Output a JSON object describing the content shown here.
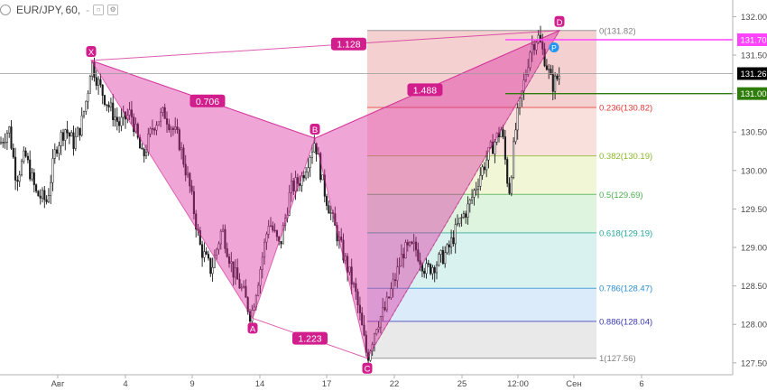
{
  "header": {
    "symbol": "EUR/JPY,",
    "timeframe": "60,",
    "dash": "-",
    "eye_icon": "eye-icon",
    "settings_icon": "gear-icon"
  },
  "chart_data": {
    "type": "candlestick",
    "y_axis": {
      "min": 127.4,
      "max": 132.2,
      "side": "right",
      "ticks": [
        "132.00",
        "131.50",
        "131.00",
        "130.50",
        "130.00",
        "129.50",
        "129.00",
        "128.50",
        "128.00",
        "127.50"
      ]
    },
    "x_axis": {
      "ticks": [
        "Авг",
        "4",
        "9",
        "14",
        "17",
        "22",
        "25",
        "12:00",
        "Сен",
        "6"
      ]
    },
    "price_badges": [
      {
        "label": "131.70",
        "value": 131.7,
        "color": "#ff44ff"
      },
      {
        "label": "131.26",
        "value": 131.26,
        "color": "#000000"
      },
      {
        "label": "131.00",
        "value": 131.0,
        "color": "#2e7d0a"
      }
    ],
    "pattern": {
      "points": [
        {
          "name": "X",
          "value": 131.43
        },
        {
          "name": "A",
          "value": 128.08
        },
        {
          "name": "B",
          "value": 130.42
        },
        {
          "name": "C",
          "value": 127.56
        },
        {
          "name": "D",
          "value": 131.82
        }
      ],
      "ratios": [
        {
          "label": "0.706",
          "between": "XB"
        },
        {
          "label": "1.128",
          "between": "XD"
        },
        {
          "label": "1.488",
          "between": "BD"
        },
        {
          "label": "1.223",
          "between": "AC"
        }
      ],
      "projection_marker": "P"
    },
    "fibonacci": [
      {
        "label": "0(131.82)",
        "value": 131.82,
        "color": "#808080"
      },
      {
        "label": "0.236(130.82)",
        "value": 130.82,
        "color": "#e53935"
      },
      {
        "label": "0.382(130.19)",
        "value": 130.19,
        "color": "#8bb82c"
      },
      {
        "label": "0.5(129.69)",
        "value": 129.69,
        "color": "#4caf50"
      },
      {
        "label": "0.618(129.19)",
        "value": 129.19,
        "color": "#26a69a"
      },
      {
        "label": "0.786(128.47)",
        "value": 128.47,
        "color": "#2f8fd0"
      },
      {
        "label": "0.886(128.04)",
        "value": 128.04,
        "color": "#3a3ab8"
      },
      {
        "label": "1(127.56)",
        "value": 127.56,
        "color": "#808080"
      }
    ]
  }
}
